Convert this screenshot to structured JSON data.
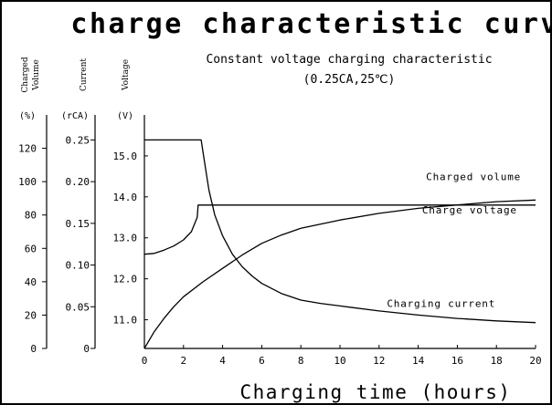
{
  "chart_data": {
    "type": "line",
    "title": "charge characteristic curve",
    "subtitle_line1": "Constant voltage charging characteristic",
    "subtitle_line2": "(0.25CA,25℃)",
    "xlabel": "Charging time (hours)",
    "xlim": [
      0,
      20
    ],
    "x_ticks": [
      0,
      2,
      4,
      6,
      8,
      10,
      12,
      14,
      16,
      18,
      20
    ],
    "axes": [
      {
        "key": "charged_volume",
        "label_line1": "Charged",
        "label_line2": "Volume",
        "unit": "(%)",
        "ylim": [
          0,
          140
        ],
        "ticks": [
          0,
          20,
          40,
          60,
          80,
          100,
          120
        ],
        "tick_labels": [
          "0",
          "20",
          "40",
          "60",
          "80",
          "100",
          "120"
        ]
      },
      {
        "key": "current",
        "label_line1": "Current",
        "label_line2": "",
        "unit": "(rCA)",
        "ylim": [
          0,
          0.28
        ],
        "ticks": [
          0,
          0.05,
          0.1,
          0.15,
          0.2,
          0.25
        ],
        "tick_labels": [
          "0",
          "0.05",
          "0.10",
          "0.15",
          "0.20",
          "0.25"
        ]
      },
      {
        "key": "voltage",
        "label_line1": "Voltage",
        "label_line2": "",
        "unit": "(V)",
        "ylim": [
          10.3,
          16.0
        ],
        "ticks": [
          11.0,
          12.0,
          13.0,
          14.0,
          15.0
        ],
        "tick_labels": [
          "11.0",
          "12.0",
          "13.0",
          "14.0",
          "15.0"
        ]
      }
    ],
    "series": [
      {
        "name": "Charged volume",
        "axis": "charged_volume",
        "x": [
          0,
          0.5,
          1,
          1.5,
          2,
          3,
          4,
          5,
          6,
          7,
          8,
          10,
          12,
          14,
          16,
          18,
          20
        ],
        "y": [
          0,
          10,
          18,
          25,
          31,
          40,
          48,
          56,
          63,
          68,
          72,
          77,
          81,
          84,
          86,
          88,
          89
        ]
      },
      {
        "name": "Charge voltage",
        "axis": "voltage",
        "x": [
          0,
          0.5,
          1,
          1.5,
          2,
          2.4,
          2.7,
          2.75,
          4,
          8,
          12,
          16,
          20
        ],
        "y": [
          12.6,
          12.62,
          12.7,
          12.8,
          12.95,
          13.15,
          13.5,
          13.8,
          13.8,
          13.8,
          13.8,
          13.8,
          13.8
        ]
      },
      {
        "name": "Charging current",
        "axis": "current",
        "x": [
          0,
          1,
          2,
          2.9,
          3.1,
          3.3,
          3.6,
          4,
          4.5,
          5,
          5.5,
          6,
          7,
          8,
          9,
          10,
          12,
          14,
          16,
          18,
          20
        ],
        "y": [
          0.25,
          0.25,
          0.25,
          0.25,
          0.22,
          0.19,
          0.16,
          0.135,
          0.113,
          0.098,
          0.087,
          0.078,
          0.066,
          0.058,
          0.054,
          0.051,
          0.045,
          0.04,
          0.036,
          0.033,
          0.031
        ]
      }
    ],
    "labels": [
      {
        "text": "Charged volume",
        "x": 14.4,
        "axis": "charged_volume",
        "y": 101
      },
      {
        "text": "Charge voltage",
        "x": 14.2,
        "axis": "voltage",
        "y": 13.6
      },
      {
        "text": "Charging current",
        "x": 12.4,
        "axis": "current",
        "y": 0.05
      }
    ],
    "grid": false,
    "legend": "none"
  }
}
